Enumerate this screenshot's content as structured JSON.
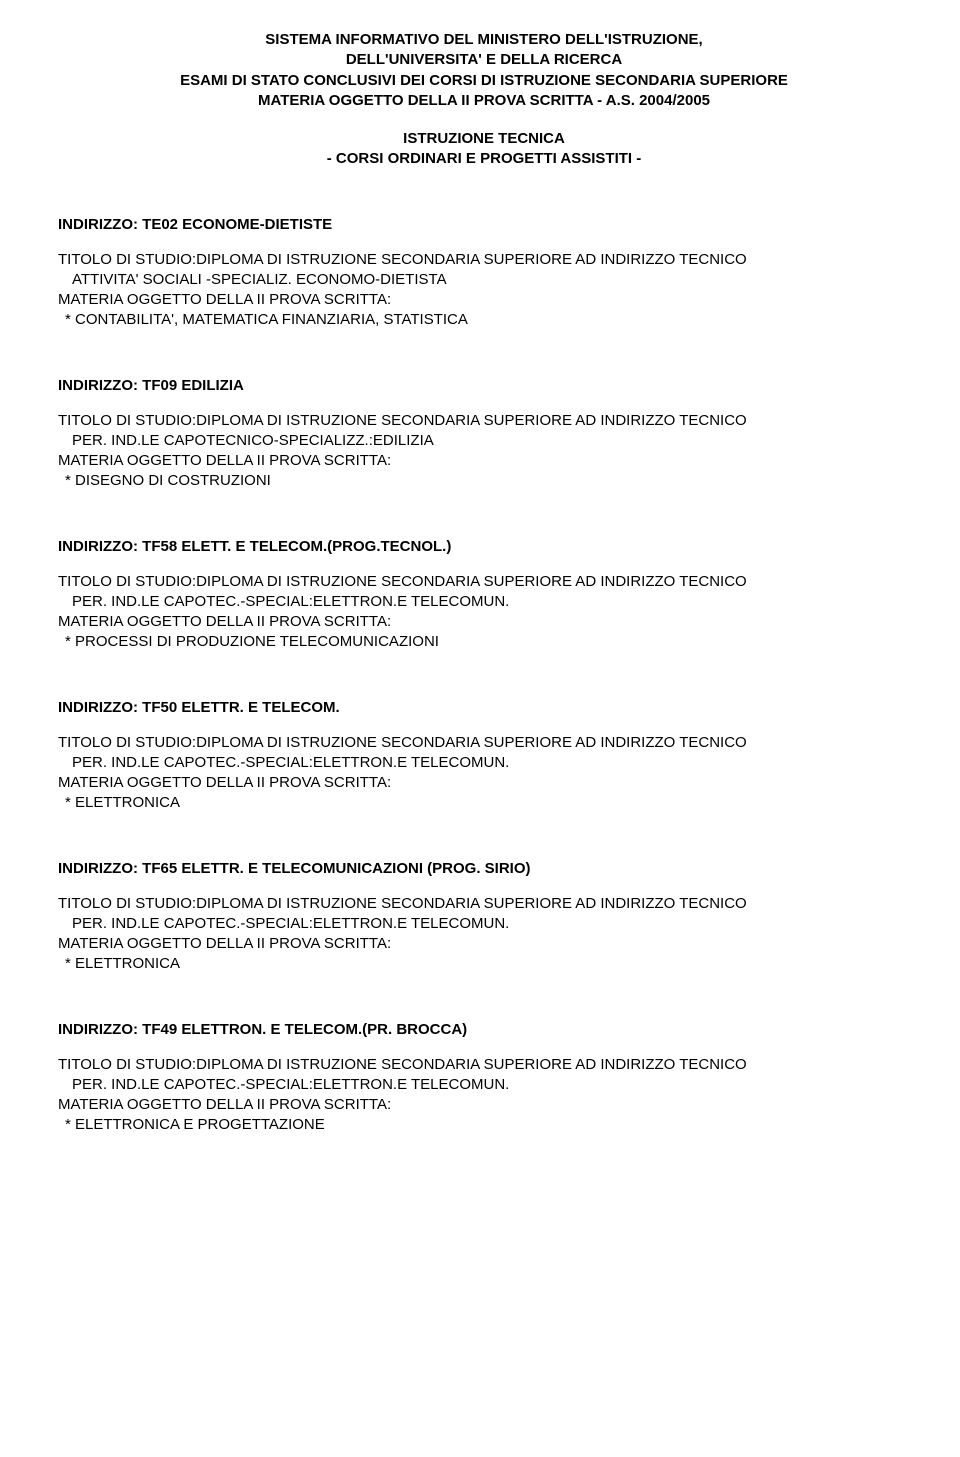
{
  "header": {
    "line1": "SISTEMA INFORMATIVO DEL MINISTERO DELL'ISTRUZIONE,",
    "line2": "DELL'UNIVERSITA' E DELLA RICERCA",
    "line3": "ESAMI DI STATO CONCLUSIVI DEI CORSI DI ISTRUZIONE SECONDARIA SUPERIORE",
    "line4": "MATERIA OGGETTO DELLA II PROVA SCRITTA - A.S. 2004/2005"
  },
  "subheader": {
    "line1": "ISTRUZIONE TECNICA",
    "line2": "- CORSI ORDINARI E PROGETTI ASSISTITI -"
  },
  "entries": [
    {
      "indirizzo": "INDIRIZZO: TE02  ECONOME-DIETISTE",
      "titolo1": "TITOLO DI STUDIO:DIPLOMA DI ISTRUZIONE SECONDARIA SUPERIORE AD INDIRIZZO  TECNICO",
      "titolo2": "ATTIVITA' SOCIALI -SPECIALIZ. ECONOMO-DIETISTA",
      "materia_label": "MATERIA OGGETTO DELLA II PROVA SCRITTA:",
      "materia_item": "* CONTABILITA', MATEMATICA FINANZIARIA, STATISTICA"
    },
    {
      "indirizzo": "INDIRIZZO: TF09  EDILIZIA",
      "titolo1": "TITOLO DI STUDIO:DIPLOMA DI ISTRUZIONE SECONDARIA SUPERIORE AD INDIRIZZO  TECNICO",
      "titolo2": "PER. IND.LE CAPOTECNICO-SPECIALIZZ.:EDILIZIA",
      "materia_label": "MATERIA OGGETTO DELLA II PROVA SCRITTA:",
      "materia_item": "* DISEGNO DI COSTRUZIONI"
    },
    {
      "indirizzo": "INDIRIZZO: TF58  ELETT. E TELECOM.(PROG.TECNOL.)",
      "titolo1": "TITOLO DI STUDIO:DIPLOMA DI ISTRUZIONE SECONDARIA SUPERIORE AD INDIRIZZO  TECNICO",
      "titolo2": "PER. IND.LE CAPOTEC.-SPECIAL:ELETTRON.E TELECOMUN.",
      "materia_label": "MATERIA OGGETTO DELLA II PROVA SCRITTA:",
      "materia_item": "* PROCESSI DI PRODUZIONE TELECOMUNICAZIONI"
    },
    {
      "indirizzo": "INDIRIZZO: TF50  ELETTR. E TELECOM.",
      "titolo1": "TITOLO DI STUDIO:DIPLOMA DI ISTRUZIONE SECONDARIA SUPERIORE AD INDIRIZZO  TECNICO",
      "titolo2": "PER. IND.LE CAPOTEC.-SPECIAL:ELETTRON.E TELECOMUN.",
      "materia_label": "MATERIA OGGETTO DELLA II PROVA SCRITTA:",
      "materia_item": "* ELETTRONICA"
    },
    {
      "indirizzo": "INDIRIZZO: TF65  ELETTR. E TELECOMUNICAZIONI (PROG. SIRIO)",
      "titolo1": "TITOLO DI STUDIO:DIPLOMA DI ISTRUZIONE SECONDARIA SUPERIORE AD INDIRIZZO  TECNICO",
      "titolo2": "PER. IND.LE CAPOTEC.-SPECIAL:ELETTRON.E TELECOMUN.",
      "materia_label": "MATERIA OGGETTO DELLA II PROVA SCRITTA:",
      "materia_item": "* ELETTRONICA"
    },
    {
      "indirizzo": "INDIRIZZO: TF49  ELETTRON. E TELECOM.(PR. BROCCA)",
      "titolo1": "TITOLO DI STUDIO:DIPLOMA DI ISTRUZIONE SECONDARIA SUPERIORE AD INDIRIZZO  TECNICO",
      "titolo2": "PER. IND.LE CAPOTEC.-SPECIAL:ELETTRON.E TELECOMUN.",
      "materia_label": "MATERIA OGGETTO DELLA II PROVA SCRITTA:",
      "materia_item": "* ELETTRONICA E PROGETTAZIONE"
    }
  ]
}
